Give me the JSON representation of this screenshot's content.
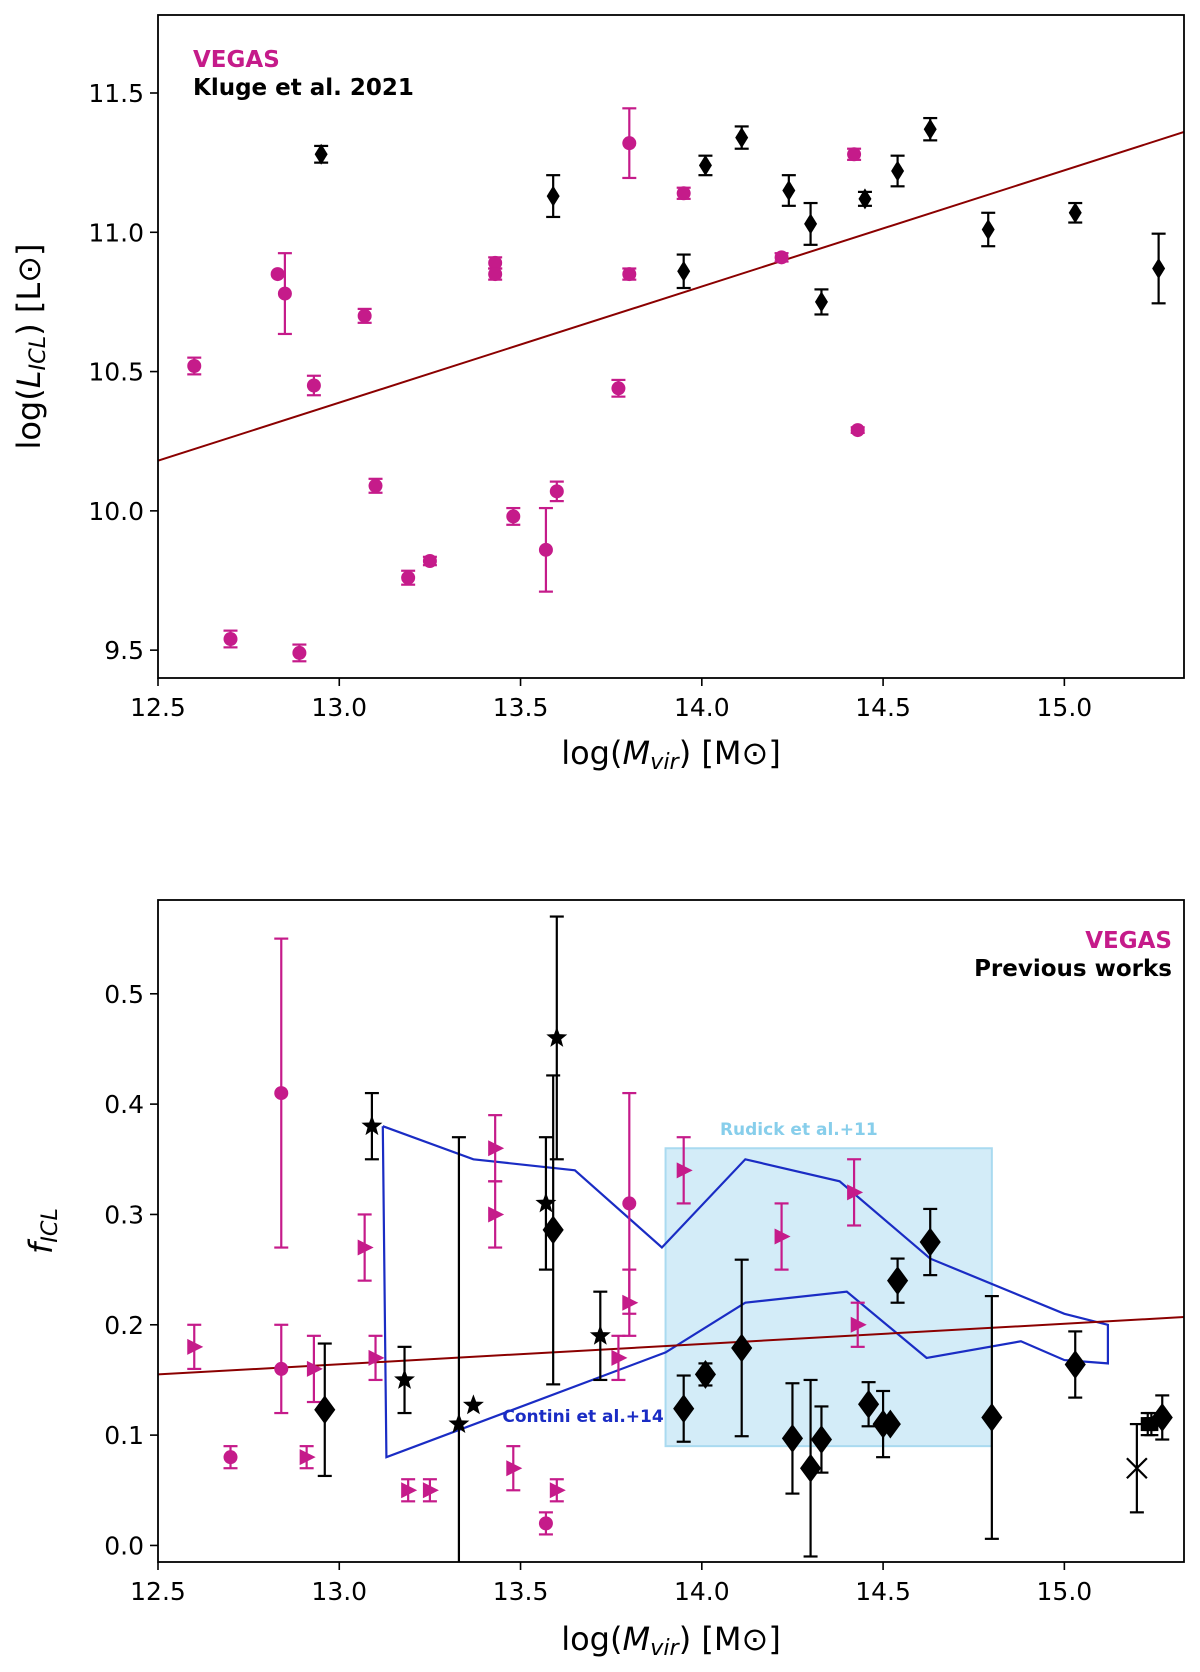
{
  "colors": {
    "vegas": "#C51B8A",
    "previous": "#000000",
    "fit": "#8B0000",
    "contini": "#1A2CC4",
    "rudick": "#87CEEB",
    "rudick_fill": "#D3ECF8"
  },
  "chart_data": [
    {
      "type": "scatter",
      "xlabel": "log(M_vir)  [M⊙]",
      "ylabel": "log(L_ICL)  [L⊙]",
      "xlim": [
        12.5,
        15.33
      ],
      "ylim": [
        9.4,
        11.78
      ],
      "xticks": [
        "12.5",
        "13.0",
        "13.5",
        "14.0",
        "14.5",
        "15.0"
      ],
      "yticks": [
        "9.5",
        "10.0",
        "10.5",
        "11.0",
        "11.5"
      ],
      "legend": {
        "placement": "top-left",
        "entries": [
          {
            "label": "VEGAS",
            "color": "#C51B8A"
          },
          {
            "label": "Kluge et al. 2021",
            "color": "#000000"
          }
        ]
      },
      "fit_line": {
        "x": [
          12.5,
          15.33
        ],
        "y": [
          10.18,
          11.36
        ]
      },
      "series": [
        {
          "name": "VEGAS",
          "marker": "circle",
          "points": [
            [
              12.6,
              10.52,
              0.03
            ],
            [
              12.7,
              9.54,
              0.03
            ],
            [
              12.83,
              10.85,
              0.0
            ],
            [
              12.85,
              10.78,
              0.145
            ],
            [
              12.89,
              9.49,
              0.03
            ],
            [
              12.93,
              10.45,
              0.035
            ],
            [
              13.07,
              10.7,
              0.025
            ],
            [
              13.1,
              10.09,
              0.025
            ],
            [
              13.19,
              9.76,
              0.025
            ],
            [
              13.25,
              9.82,
              0.015
            ],
            [
              13.43,
              10.89,
              0.02
            ],
            [
              13.43,
              10.85,
              0.02
            ],
            [
              13.48,
              9.98,
              0.03
            ],
            [
              13.57,
              9.86,
              0.15
            ],
            [
              13.6,
              10.07,
              0.035
            ],
            [
              13.77,
              10.44,
              0.03
            ],
            [
              13.8,
              11.32,
              0.125
            ],
            [
              13.8,
              10.85,
              0.02
            ],
            [
              13.95,
              11.14,
              0.02
            ],
            [
              14.22,
              10.91,
              0.015
            ],
            [
              14.42,
              11.28,
              0.02
            ],
            [
              14.43,
              10.29,
              0.01
            ]
          ]
        },
        {
          "name": "Kluge et al. 2021",
          "marker": "diamond",
          "points": [
            [
              12.95,
              11.28,
              0.03
            ],
            [
              13.59,
              11.13,
              0.075
            ],
            [
              13.95,
              10.86,
              0.06
            ],
            [
              14.01,
              11.24,
              0.035
            ],
            [
              14.11,
              11.34,
              0.04
            ],
            [
              14.24,
              11.15,
              0.055
            ],
            [
              14.3,
              11.03,
              0.075
            ],
            [
              14.33,
              10.75,
              0.045
            ],
            [
              14.45,
              11.12,
              0.025
            ],
            [
              14.54,
              11.22,
              0.055
            ],
            [
              14.63,
              11.37,
              0.04
            ],
            [
              14.79,
              11.01,
              0.06
            ],
            [
              15.03,
              11.07,
              0.035
            ],
            [
              15.26,
              10.87,
              0.125
            ]
          ]
        }
      ]
    },
    {
      "type": "scatter",
      "xlabel": "log(M_vir)  [M⊙]",
      "ylabel": "f_ICL",
      "xlim": [
        12.5,
        15.33
      ],
      "ylim": [
        -0.015,
        0.585
      ],
      "xticks": [
        "12.5",
        "13.0",
        "13.5",
        "14.0",
        "14.5",
        "15.0"
      ],
      "yticks": [
        "0.0",
        "0.1",
        "0.2",
        "0.3",
        "0.4",
        "0.5"
      ],
      "legend": {
        "placement": "top-right",
        "entries": [
          {
            "label": "VEGAS",
            "color": "#C51B8A"
          },
          {
            "label": "Previous works",
            "color": "#000000"
          }
        ]
      },
      "annotations": [
        {
          "text": "Rudick et al.+11",
          "color": "#87CEEB",
          "x": 14.05,
          "y": 0.372
        },
        {
          "text": "Contini et al.+14",
          "color": "#1A2CC4",
          "x": 13.45,
          "y": 0.112
        }
      ],
      "rudick_box": {
        "x": [
          13.9,
          14.8
        ],
        "y": [
          0.09,
          0.36
        ]
      },
      "contini_region": [
        [
          13.12,
          0.38
        ],
        [
          13.37,
          0.35
        ],
        [
          13.65,
          0.34
        ],
        [
          13.89,
          0.27
        ],
        [
          14.12,
          0.35
        ],
        [
          14.38,
          0.33
        ],
        [
          14.63,
          0.26
        ],
        [
          15.0,
          0.21
        ],
        [
          15.12,
          0.2
        ],
        [
          15.12,
          0.165
        ],
        [
          15.0,
          0.168
        ],
        [
          14.88,
          0.185
        ],
        [
          14.62,
          0.17
        ],
        [
          14.4,
          0.23
        ],
        [
          14.12,
          0.22
        ],
        [
          13.9,
          0.175
        ],
        [
          13.13,
          0.08
        ],
        [
          13.12,
          0.38
        ]
      ],
      "fit_line": {
        "x": [
          12.5,
          15.33
        ],
        "y": [
          0.155,
          0.207
        ]
      },
      "series": [
        {
          "name": "VEGAS",
          "marker": "circle",
          "points": [
            [
              12.7,
              0.08,
              0.01
            ],
            [
              12.84,
              0.41,
              0.14
            ],
            [
              12.84,
              0.16,
              0.04
            ],
            [
              13.57,
              0.02,
              0.01
            ],
            [
              13.8,
              0.31,
              0.1
            ]
          ]
        },
        {
          "name": "VEGAS",
          "marker": "triangle-right",
          "points": [
            [
              12.6,
              0.18,
              0.02
            ],
            [
              12.91,
              0.08,
              0.01
            ],
            [
              12.93,
              0.16,
              0.03
            ],
            [
              13.07,
              0.27,
              0.03
            ],
            [
              13.1,
              0.17,
              0.02
            ],
            [
              13.19,
              0.05,
              0.01
            ],
            [
              13.25,
              0.05,
              0.01
            ],
            [
              13.43,
              0.36,
              0.03
            ],
            [
              13.43,
              0.3,
              0.03
            ],
            [
              13.48,
              0.07,
              0.02
            ],
            [
              13.6,
              0.05,
              0.01
            ],
            [
              13.77,
              0.17,
              0.02
            ],
            [
              13.8,
              0.22,
              0.03
            ],
            [
              13.95,
              0.34,
              0.03
            ],
            [
              14.22,
              0.28,
              0.03
            ],
            [
              14.42,
              0.32,
              0.03
            ],
            [
              14.43,
              0.2,
              0.02
            ]
          ]
        },
        {
          "name": "Previous works",
          "marker": "star",
          "points": [
            [
              13.09,
              0.38,
              0.03
            ],
            [
              13.18,
              0.15,
              0.03
            ],
            [
              13.33,
              0.11,
              0.26
            ],
            [
              13.37,
              0.127,
              0.0
            ],
            [
              13.57,
              0.31,
              0.06
            ],
            [
              13.6,
              0.46,
              0.11
            ],
            [
              13.72,
              0.19,
              0.04
            ]
          ]
        },
        {
          "name": "Previous works",
          "marker": "diamond",
          "points": [
            [
              12.96,
              0.123,
              0.06
            ],
            [
              13.59,
              0.286,
              0.14
            ],
            [
              13.95,
              0.124,
              0.03
            ],
            [
              14.01,
              0.155,
              0.01
            ],
            [
              14.11,
              0.179,
              0.08
            ],
            [
              14.25,
              0.097,
              0.05
            ],
            [
              14.3,
              0.07,
              0.08
            ],
            [
              14.33,
              0.096,
              0.03
            ],
            [
              14.46,
              0.128,
              0.02
            ],
            [
              14.5,
              0.11,
              0.03
            ],
            [
              14.52,
              0.11,
              0.0
            ],
            [
              14.54,
              0.24,
              0.02
            ],
            [
              14.63,
              0.275,
              0.03
            ],
            [
              14.8,
              0.116,
              0.11
            ],
            [
              15.03,
              0.164,
              0.03
            ],
            [
              15.27,
              0.116,
              0.02
            ]
          ]
        },
        {
          "name": "Previous works",
          "marker": "square",
          "points": [
            [
              15.23,
              0.11,
              0.01
            ],
            [
              15.24,
              0.11,
              0.01
            ]
          ]
        },
        {
          "name": "Previous works",
          "marker": "x",
          "points": [
            [
              15.2,
              0.07,
              0.04
            ]
          ]
        }
      ]
    }
  ]
}
